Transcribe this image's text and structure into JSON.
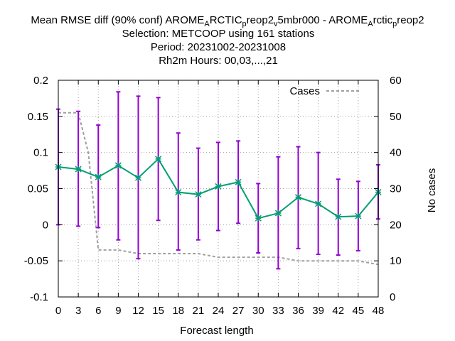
{
  "chart_data": {
    "type": "line",
    "title": {
      "line1_prefix": "Mean RMSE diff (90% conf) AROME",
      "line1_sub1": "A",
      "line1_mid1": "RCTIC",
      "line1_sub2": "p",
      "line1_mid2": "reop2",
      "line1_sub3": "v",
      "line1_mid3": "5mbr000 - AROME",
      "line1_sub4": "A",
      "line1_mid4": "rctic",
      "line1_sub5": "p",
      "line1_mid5": "reop2",
      "line2": "Selection: METCOOP using   161 stations",
      "line3": "Period: 20231002-20231008",
      "line4": "Rh2m   Hours:  00,03,...,21"
    },
    "xlabel": "Forecast length",
    "ylabel_right": "No cases",
    "x": [
      0,
      3,
      6,
      9,
      12,
      15,
      18,
      21,
      24,
      27,
      30,
      33,
      36,
      39,
      42,
      45,
      48
    ],
    "xlim": [
      0,
      48
    ],
    "ylim": [
      -0.1,
      0.2
    ],
    "y2lim": [
      0,
      60
    ],
    "x_ticks": [
      "0",
      "3",
      "6",
      "9",
      "12",
      "15",
      "18",
      "21",
      "24",
      "27",
      "30",
      "33",
      "36",
      "39",
      "42",
      "45",
      "48"
    ],
    "y_ticks": [
      "-0.1",
      "-0.05",
      "0",
      "0.05",
      "0.1",
      "0.15",
      "0.2"
    ],
    "y_tick_values": [
      -0.1,
      -0.05,
      0,
      0.05,
      0.1,
      0.15,
      0.2
    ],
    "y2_ticks": [
      "0",
      "10",
      "20",
      "30",
      "40",
      "50",
      "60"
    ],
    "y2_tick_values": [
      0,
      10,
      20,
      30,
      40,
      50,
      60
    ],
    "grid": true,
    "legend_position": "top-right",
    "series": [
      {
        "values": [
          0.08,
          0.077,
          0.066,
          0.082,
          0.065,
          0.091,
          0.045,
          0.042,
          0.053,
          0.059,
          0.009,
          0.016,
          0.038,
          0.029,
          0.011,
          0.012,
          0.045
        ],
        "lower": [
          0.0,
          -0.002,
          -0.004,
          -0.021,
          -0.047,
          0.006,
          -0.035,
          -0.021,
          -0.008,
          0.002,
          -0.039,
          -0.061,
          -0.033,
          -0.041,
          -0.042,
          -0.036,
          0.008
        ],
        "upper": [
          0.16,
          0.157,
          0.138,
          0.184,
          0.178,
          0.176,
          0.127,
          0.106,
          0.114,
          0.116,
          0.057,
          0.094,
          0.108,
          0.1,
          0.063,
          0.06,
          0.083
        ],
        "color": "#009e73",
        "errorbar_color": "#9400d3",
        "marker": "star"
      },
      {
        "name": "Cases",
        "axis": "right",
        "x": [
          0,
          3,
          4.5,
          6,
          9,
          12,
          15,
          18,
          21,
          24,
          27,
          30,
          33,
          36,
          39,
          42,
          45,
          48
        ],
        "values": [
          51,
          51,
          40,
          13,
          13,
          12,
          12,
          12,
          12,
          11,
          11,
          11,
          11,
          10,
          10,
          10,
          10,
          9
        ],
        "color": "#a0a0a0",
        "dash": true
      }
    ]
  }
}
